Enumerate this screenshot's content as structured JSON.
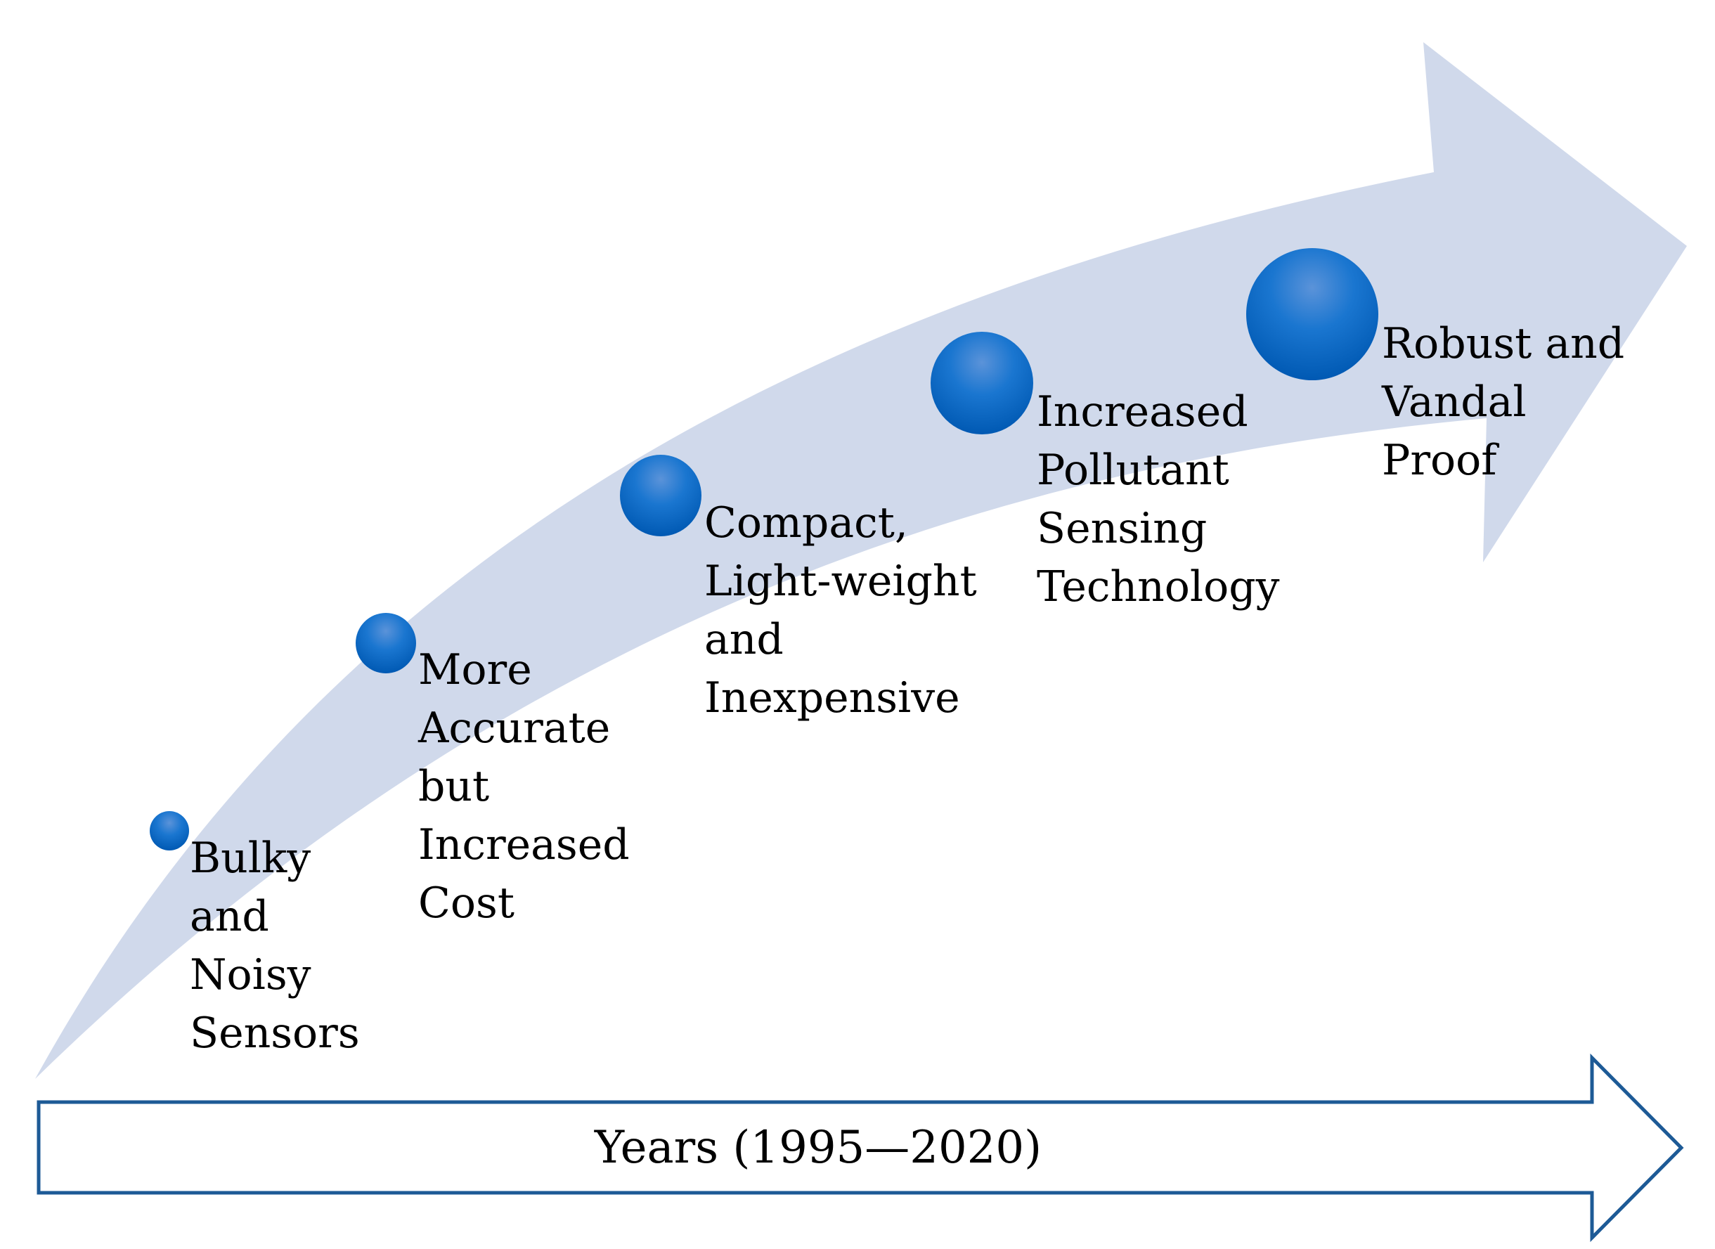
{
  "diagram": {
    "colors": {
      "band": "#d0d9eb",
      "node_light": "#5b93d9",
      "node_dark": "#0062bf",
      "timeline_stroke": "#1d5a96",
      "timeline_fill": "#ffffff",
      "text": "#000000"
    },
    "stages": [
      {
        "label": "Bulky\nand\nNoisy\nSensors"
      },
      {
        "label": "More\nAccurate\nbut\nIncreased\nCost"
      },
      {
        "label": "Compact,\nLight-weight\nand\nInexpensive"
      },
      {
        "label": "Increased\nPollutant\nSensing\nTechnology"
      },
      {
        "label": " Robust and\nVandal\nProof"
      }
    ],
    "timeline": {
      "label": "Years (1995—2020)"
    }
  }
}
